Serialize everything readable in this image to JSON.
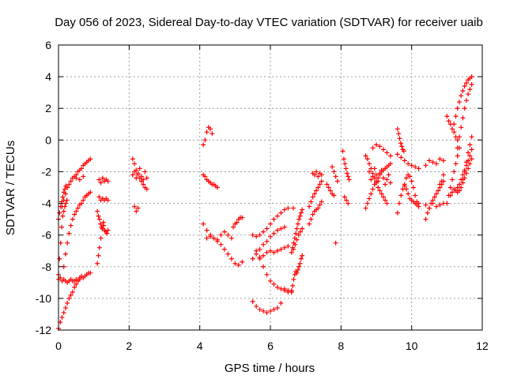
{
  "chart_data": {
    "type": "scatter",
    "title": "Day 056 of 2023, Sidereal Day-to-day VTEC variation (SDTVAR) for receiver uaib",
    "xlabel": "GPS time / hours",
    "ylabel": "SDTVAR / TECUs",
    "xlim": [
      0,
      12
    ],
    "ylim": [
      -12,
      6
    ],
    "xticks": [
      "0",
      "2",
      "4",
      "6",
      "8",
      "10",
      "12"
    ],
    "yticks": [
      "-12",
      "-10",
      "-8",
      "-6",
      "-4",
      "-2",
      "0",
      "2",
      "4",
      "6"
    ],
    "grid": true,
    "marker": "plus",
    "color": "#ff0000",
    "series": [
      {
        "x": [
          0.0,
          0.05,
          0.1,
          0.15,
          0.2,
          0.25,
          0.3,
          0.35,
          0.4,
          0.45,
          0.5,
          0.55,
          0.6
        ],
        "y": [
          -11.9,
          -11.5,
          -11.2,
          -10.9,
          -10.6,
          -10.3,
          -10.0,
          -9.8,
          -9.6,
          -9.3,
          -9.1,
          -8.9,
          -8.7
        ]
      },
      {
        "x": [
          0.0,
          0.05,
          0.1,
          0.15,
          0.2,
          0.25,
          0.3,
          0.35,
          0.4,
          0.45,
          0.5,
          0.55,
          0.6,
          0.65,
          0.7,
          0.75,
          0.8,
          0.85,
          0.9
        ],
        "y": [
          -8.8,
          -8.7,
          -8.9,
          -8.8,
          -8.9,
          -9.0,
          -8.9,
          -8.8,
          -8.9,
          -8.9,
          -8.8,
          -8.9,
          -8.8,
          -8.6,
          -8.7,
          -8.6,
          -8.5,
          -8.4,
          -8.4
        ]
      },
      {
        "x": [
          0.0,
          0.03,
          0.06,
          0.09,
          0.12,
          0.15,
          0.18,
          0.21,
          0.24
        ],
        "y": [
          -8.5,
          -7.5,
          -6.5,
          -5.5,
          -4.8,
          -4.5,
          -4.2,
          -4.0,
          -3.8
        ]
      },
      {
        "x": [
          0.1,
          0.15,
          0.2,
          0.25,
          0.3,
          0.35,
          0.4,
          0.45,
          0.5,
          0.55,
          0.6,
          0.65,
          0.7,
          0.75,
          0.8,
          0.85,
          0.9
        ],
        "y": [
          -4.2,
          -3.8,
          -3.4,
          -3.0,
          -2.8,
          -2.6,
          -2.4,
          -2.3,
          -2.2,
          -2.0,
          -1.9,
          -1.8,
          -1.6,
          -1.5,
          -1.4,
          -1.3,
          -1.2
        ]
      },
      {
        "x": [
          0.0,
          0.03,
          0.06,
          0.09,
          0.12,
          0.15,
          0.18,
          0.21
        ],
        "y": [
          -5.0,
          -4.6,
          -4.2,
          -3.9,
          -3.6,
          -3.3,
          -3.1,
          -2.9
        ]
      },
      {
        "x": [
          0.15,
          0.2,
          0.25,
          0.3,
          0.35,
          0.4,
          0.45,
          0.5,
          0.55,
          0.6,
          0.65,
          0.7,
          0.75,
          0.8,
          0.85,
          0.9
        ],
        "y": [
          -8.0,
          -7.2,
          -6.5,
          -5.9,
          -5.4,
          -5.0,
          -4.7,
          -4.5,
          -4.3,
          -4.1,
          -4.0,
          -3.8,
          -3.6,
          -3.5,
          -3.4,
          -3.3
        ]
      },
      {
        "x": [
          0.5,
          0.6,
          0.7
        ],
        "y": [
          -2.4,
          -2.5,
          -2.3
        ]
      },
      {
        "x": [
          1.1,
          1.13,
          1.16,
          1.19,
          1.22,
          1.25,
          1.28,
          1.31,
          1.34,
          1.37,
          1.4
        ],
        "y": [
          -4.5,
          -4.8,
          -5.0,
          -5.3,
          -5.5,
          -5.6,
          -5.4,
          -5.7,
          -5.8,
          -5.9,
          -5.7
        ]
      },
      {
        "x": [
          1.1,
          1.13,
          1.16,
          1.2,
          1.24,
          1.27
        ],
        "y": [
          -7.8,
          -7.3,
          -6.8,
          -6.2,
          -5.6,
          -5.2
        ]
      },
      {
        "x": [
          1.15,
          1.2,
          1.25,
          1.3,
          1.35,
          1.4
        ],
        "y": [
          -3.6,
          -3.8,
          -3.7,
          -3.8,
          -3.7,
          -3.8
        ]
      },
      {
        "x": [
          1.15,
          1.2,
          1.25,
          1.3,
          1.35,
          1.4
        ],
        "y": [
          -2.5,
          -2.7,
          -2.4,
          -2.6,
          -2.5,
          -2.6
        ]
      },
      {
        "x": [
          2.1,
          2.15,
          2.2,
          2.25,
          2.3,
          2.35,
          2.4,
          2.45,
          2.5
        ],
        "y": [
          -1.2,
          -1.5,
          -1.9,
          -2.1,
          -2.4,
          -2.6,
          -2.8,
          -3.0,
          -3.1
        ]
      },
      {
        "x": [
          2.1,
          2.15,
          2.2,
          2.25,
          2.3,
          2.35,
          2.4,
          2.45,
          2.5
        ],
        "y": [
          -2.2,
          -2.0,
          -2.4,
          -2.2,
          -1.8,
          -2.3,
          -2.5,
          -2.0,
          -2.4
        ]
      },
      {
        "x": [
          2.15,
          2.2,
          2.25
        ],
        "y": [
          -4.2,
          -4.5,
          -4.3
        ]
      },
      {
        "x": [
          4.1,
          4.15,
          4.2,
          4.25,
          4.3,
          4.35
        ],
        "y": [
          -0.3,
          0.0,
          0.5,
          0.8,
          0.7,
          0.4
        ]
      },
      {
        "x": [
          4.1,
          4.15,
          4.2,
          4.25,
          4.3,
          4.35,
          4.4,
          4.45,
          4.5
        ],
        "y": [
          -2.2,
          -2.3,
          -2.5,
          -2.6,
          -2.7,
          -2.8,
          -2.8,
          -2.9,
          -3.0
        ]
      },
      {
        "x": [
          4.1,
          4.2,
          4.3,
          4.4,
          4.5,
          4.6,
          4.7,
          4.8,
          4.9,
          5.0,
          5.1,
          5.2
        ],
        "y": [
          -5.3,
          -5.7,
          -6.0,
          -6.2,
          -6.4,
          -6.6,
          -6.9,
          -7.2,
          -7.5,
          -7.8,
          -7.9,
          -7.7
        ]
      },
      {
        "x": [
          4.2,
          4.3,
          4.4,
          4.5,
          4.6,
          4.7,
          4.8,
          4.9
        ],
        "y": [
          -6.2,
          -6.1,
          -6.2,
          -6.3,
          -6.0,
          -5.8,
          -6.0,
          -6.2
        ]
      },
      {
        "x": [
          4.95,
          5.0,
          5.05,
          5.1,
          5.15,
          5.2
        ],
        "y": [
          -5.5,
          -5.3,
          -5.2,
          -5.0,
          -4.9,
          -4.9
        ]
      },
      {
        "x": [
          5.5,
          5.6,
          5.7,
          5.8,
          5.9,
          6.0,
          6.1,
          6.2,
          6.3,
          6.4
        ],
        "y": [
          -7.5,
          -7.2,
          -6.9,
          -6.6,
          -6.4,
          -6.1,
          -5.9,
          -5.7,
          -5.6,
          -5.5
        ]
      },
      {
        "x": [
          5.5,
          5.6,
          5.7,
          5.8,
          5.9,
          6.0,
          6.1,
          6.2,
          6.3,
          6.4,
          6.5
        ],
        "y": [
          -6.0,
          -6.1,
          -6.0,
          -5.8,
          -5.6,
          -5.3,
          -5.0,
          -4.8,
          -4.6,
          -4.4,
          -4.3
        ]
      },
      {
        "x": [
          5.7,
          5.8,
          5.9,
          6.0,
          6.1,
          6.2,
          6.3,
          6.4,
          6.5
        ],
        "y": [
          -7.4,
          -7.3,
          -7.1,
          -7.0,
          -7.1,
          -7.0,
          -6.9,
          -6.8,
          -6.7
        ]
      },
      {
        "x": [
          5.6,
          5.7,
          5.8,
          5.9,
          6.0,
          6.1,
          6.2,
          6.3,
          6.4,
          6.5,
          6.6
        ],
        "y": [
          -7.0,
          -7.5,
          -8.0,
          -8.5,
          -8.9,
          -9.1,
          -9.3,
          -9.4,
          -9.5,
          -9.5,
          -9.6
        ]
      },
      {
        "x": [
          5.5,
          5.6,
          5.7,
          5.8,
          5.9,
          6.0,
          6.1,
          6.2,
          6.3
        ],
        "y": [
          -10.2,
          -10.5,
          -10.7,
          -10.8,
          -10.9,
          -10.8,
          -10.7,
          -10.6,
          -10.3
        ]
      },
      {
        "x": [
          6.4,
          6.5,
          6.6
        ],
        "y": [
          -9.4,
          -9.6,
          -9.5
        ]
      },
      {
        "x": [
          6.6,
          6.63,
          6.66,
          6.69,
          6.72,
          6.75,
          6.78,
          6.81,
          6.84,
          6.87,
          6.9
        ],
        "y": [
          -9.6,
          -9.2,
          -8.8,
          -8.5,
          -8.3,
          -8.4,
          -8.2,
          -8.0,
          -7.8,
          -7.5,
          -7.3
        ]
      },
      {
        "x": [
          6.65,
          6.7,
          6.75,
          6.8,
          6.85,
          6.9
        ],
        "y": [
          -6.9,
          -6.6,
          -6.3,
          -6.0,
          -5.8,
          -5.6
        ]
      },
      {
        "x": [
          6.6,
          6.63,
          6.66,
          6.69,
          6.72,
          6.75,
          6.78,
          6.81,
          6.84,
          6.87,
          6.9
        ],
        "y": [
          -7.1,
          -6.8,
          -6.5,
          -6.2,
          -5.9,
          -5.6,
          -5.3,
          -5.0,
          -4.8,
          -4.6,
          -4.4
        ]
      },
      {
        "x": [
          6.65
        ],
        "y": [
          -4.3
        ]
      },
      {
        "x": [
          7.1,
          7.15,
          7.2,
          7.25,
          7.3,
          7.35,
          7.4,
          7.45
        ],
        "y": [
          -5.3,
          -5.0,
          -4.7,
          -4.5,
          -4.4,
          -4.3,
          -4.1,
          -3.9
        ]
      },
      {
        "x": [
          7.1,
          7.15,
          7.2,
          7.25,
          7.3,
          7.35,
          7.4,
          7.45
        ],
        "y": [
          -4.2,
          -3.9,
          -3.6,
          -3.4,
          -3.2,
          -3.0,
          -2.8,
          -2.6
        ]
      },
      {
        "x": [
          7.2,
          7.25,
          7.3,
          7.35,
          7.4,
          7.45
        ],
        "y": [
          -2.1,
          -2.2,
          -2.0,
          -2.3,
          -2.1,
          -2.2
        ]
      },
      {
        "x": [
          7.6,
          7.65,
          7.7,
          7.75,
          7.8
        ],
        "y": [
          -2.8,
          -3.0,
          -3.2,
          -3.4,
          -3.5
        ]
      },
      {
        "x": [
          7.75,
          7.8,
          7.85,
          7.9
        ],
        "y": [
          -1.7,
          -2.0,
          -2.3,
          -2.6
        ]
      },
      {
        "x": [
          7.85
        ],
        "y": [
          -6.5
        ]
      },
      {
        "x": [
          8.05,
          8.08,
          8.11,
          8.14,
          8.17,
          8.2,
          8.23
        ],
        "y": [
          -0.7,
          -1.2,
          -1.5,
          -1.8,
          -2.1,
          -2.3,
          -2.5
        ]
      },
      {
        "x": [
          8.1,
          8.15,
          8.2
        ],
        "y": [
          -3.6,
          -3.8,
          -4.0
        ]
      },
      {
        "x": [
          8.7,
          8.75,
          8.8,
          8.85,
          8.9,
          8.95,
          9.0,
          9.05,
          9.1,
          9.15,
          9.2,
          9.25,
          9.3,
          9.35,
          9.4
        ],
        "y": [
          -4.3,
          -4.0,
          -3.7,
          -3.4,
          -3.1,
          -2.8,
          -2.6,
          -2.4,
          -2.2,
          -2.0,
          -1.9,
          -1.8,
          -1.7,
          -1.6,
          -1.5
        ]
      },
      {
        "x": [
          8.7,
          8.75,
          8.8,
          8.85,
          8.9,
          8.95,
          9.0,
          9.05,
          9.1,
          9.15,
          9.2,
          9.25,
          9.3
        ],
        "y": [
          -1.0,
          -1.2,
          -1.5,
          -1.8,
          -2.1,
          -2.4,
          -2.7,
          -3.0,
          -3.2,
          -3.4,
          -3.6,
          -3.8,
          -4.0
        ]
      },
      {
        "x": [
          8.8,
          8.85,
          8.9,
          8.95,
          9.0,
          9.05,
          9.1,
          9.15,
          9.2,
          9.25,
          9.3,
          9.35,
          9.4
        ],
        "y": [
          -2.0,
          -2.5,
          -2.3,
          -1.8,
          -2.2,
          -2.6,
          -2.1,
          -1.9,
          -2.4,
          -2.8,
          -2.5,
          -2.2,
          -2.7
        ]
      },
      {
        "x": [
          8.9,
          9.0,
          9.1,
          9.2,
          9.3,
          9.4
        ],
        "y": [
          -0.5,
          -0.3,
          -0.4,
          -0.6,
          -0.8,
          -1.0
        ]
      },
      {
        "x": [
          9.6,
          9.63,
          9.66,
          9.69,
          9.72,
          9.75,
          9.78
        ],
        "y": [
          0.7,
          0.4,
          0.1,
          -0.2,
          -0.4,
          -0.6,
          -0.7
        ]
      },
      {
        "x": [
          9.6,
          9.7,
          9.8,
          9.9,
          10.0,
          10.1,
          10.2
        ],
        "y": [
          -0.9,
          -1.1,
          -1.3,
          -1.5,
          -1.6,
          -1.7,
          -1.8
        ]
      },
      {
        "x": [
          9.6,
          9.65,
          9.7,
          9.75,
          9.8,
          9.85,
          9.9,
          9.95,
          10.0,
          10.05,
          10.1,
          10.15,
          10.2
        ],
        "y": [
          -4.6,
          -4.0,
          -3.5,
          -3.1,
          -2.9,
          -3.1,
          -3.4,
          -3.7,
          -3.8,
          -3.9,
          -4.0,
          -4.1,
          -4.0
        ]
      },
      {
        "x": [
          9.8,
          9.85,
          9.9,
          9.95,
          10.0,
          10.05,
          10.1,
          10.15,
          10.2
        ],
        "y": [
          -2.8,
          -2.4,
          -2.2,
          -2.3,
          -2.6,
          -3.0,
          -3.5,
          -3.9,
          -4.2
        ]
      },
      {
        "x": [
          10.4,
          10.5,
          10.6,
          10.7,
          10.8,
          10.9
        ],
        "y": [
          -1.6,
          -1.3,
          -1.4,
          -1.5,
          -1.2,
          -1.3
        ]
      },
      {
        "x": [
          10.4,
          10.45,
          10.5,
          10.55,
          10.6,
          10.65,
          10.7,
          10.75,
          10.8,
          10.85,
          10.9
        ],
        "y": [
          -5.0,
          -4.6,
          -4.3,
          -4.0,
          -3.8,
          -3.6,
          -3.4,
          -3.2,
          -3.0,
          -2.8,
          -2.6
        ]
      },
      {
        "x": [
          10.4,
          10.5,
          10.6,
          10.7,
          10.8,
          10.9
        ],
        "y": [
          -4.1,
          -4.3,
          -4.0,
          -4.2,
          -4.1,
          -4.0
        ]
      },
      {
        "x": [
          10.8,
          10.85,
          10.9
        ],
        "y": [
          -2.8,
          -2.6,
          -2.2
        ]
      },
      {
        "x": [
          11.0,
          11.05,
          11.1,
          11.15,
          11.2,
          11.25,
          11.3,
          11.35
        ],
        "y": [
          -4.0,
          -3.5,
          -3.0,
          -2.5,
          -2.0,
          -1.5,
          -1.0,
          -0.5
        ]
      },
      {
        "x": [
          11.0,
          11.05,
          11.1,
          11.15,
          11.2,
          11.25,
          11.3
        ],
        "y": [
          1.5,
          1.2,
          1.0,
          0.7,
          0.5,
          0.2,
          0.0
        ]
      },
      {
        "x": [
          11.2,
          11.25,
          11.3,
          11.35,
          11.4,
          11.45,
          11.5,
          11.55,
          11.6,
          11.65,
          11.7
        ],
        "y": [
          1.0,
          1.5,
          2.0,
          2.4,
          2.8,
          3.1,
          3.4,
          3.6,
          3.8,
          3.9,
          4.0
        ]
      },
      {
        "x": [
          11.3,
          11.35,
          11.4,
          11.45,
          11.5,
          11.55,
          11.6,
          11.65,
          11.7
        ],
        "y": [
          -0.5,
          0.2,
          0.8,
          1.4,
          2.0,
          2.5,
          2.9,
          3.2,
          3.5
        ]
      },
      {
        "x": [
          11.1,
          11.15,
          11.2,
          11.25,
          11.3,
          11.35,
          11.4,
          11.45,
          11.5,
          11.55,
          11.6,
          11.65,
          11.7
        ],
        "y": [
          -3.5,
          -3.3,
          -3.1,
          -3.2,
          -3.0,
          -2.8,
          -2.5,
          -2.2,
          -1.9,
          -1.6,
          -1.3,
          -1.0,
          -0.6
        ]
      },
      {
        "x": [
          11.45,
          11.5,
          11.55,
          11.6,
          11.65,
          11.7
        ],
        "y": [
          -2.5,
          -2.0,
          -1.4,
          -0.8,
          -0.3,
          0.2
        ]
      },
      {
        "x": [
          11.3,
          11.35,
          11.4,
          11.45,
          11.5,
          11.55,
          11.6,
          11.65,
          11.7
        ],
        "y": [
          -3.3,
          -3.2,
          -3.0,
          -2.7,
          -2.4,
          -2.1,
          -1.8,
          -1.5,
          -1.2
        ]
      }
    ]
  }
}
